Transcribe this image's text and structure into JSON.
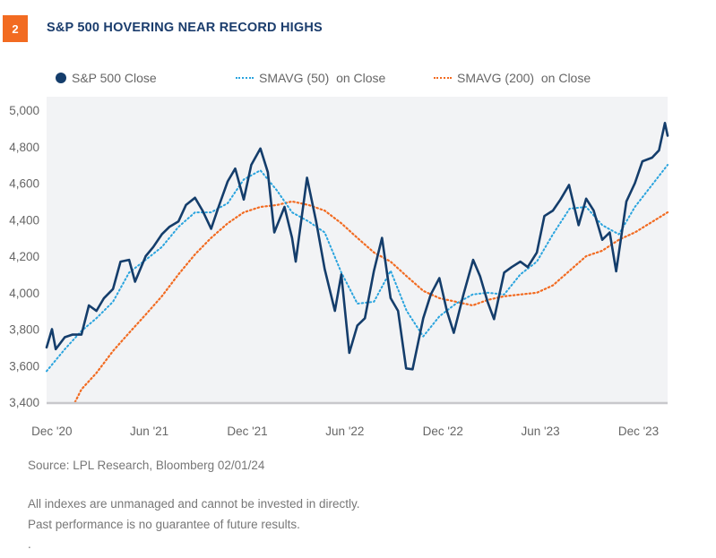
{
  "badge": "2",
  "title": "S&P 500 HOVERING NEAR RECORD HIGHS",
  "footer": {
    "source": "Source: LPL Research, Bloomberg  02/01/24",
    "disclaimer1": "All indexes are unmanaged and cannot be invested in directly.",
    "disclaimer2": "Past performance is no guarantee of future results.",
    "dot": "."
  },
  "colors": {
    "close": "#143D6B",
    "sma50": "#2AA4DE",
    "sma200": "#F26B21",
    "badge": "#F26B21",
    "plot_bg": "#F2F3F5"
  },
  "chart_data": {
    "type": "line",
    "title": "S&P 500 HOVERING NEAR RECORD HIGHS",
    "xlabel": "",
    "ylabel": "",
    "xlim": [
      "2020-11-28",
      "2024-01-31"
    ],
    "ylim": [
      3400,
      5000
    ],
    "grid": false,
    "legend": "top",
    "yticks": [
      {
        "v": 3400,
        "label": "3,400"
      },
      {
        "v": 3600,
        "label": "3,600"
      },
      {
        "v": 3800,
        "label": "3,800"
      },
      {
        "v": 4000,
        "label": "4,000"
      },
      {
        "v": 4200,
        "label": "4,200"
      },
      {
        "v": 4400,
        "label": "4,400"
      },
      {
        "v": 4600,
        "label": "4,600"
      },
      {
        "v": 4800,
        "label": "4,800"
      },
      {
        "v": 5000,
        "label": "5,000"
      }
    ],
    "xticks": [
      {
        "d": "2020-12-01",
        "label": "Dec '20"
      },
      {
        "d": "2021-06-01",
        "label": "Jun '21"
      },
      {
        "d": "2021-12-01",
        "label": "Dec '21"
      },
      {
        "d": "2022-06-01",
        "label": "Jun '22"
      },
      {
        "d": "2022-12-01",
        "label": "Dec '22"
      },
      {
        "d": "2023-06-01",
        "label": "Jun '23"
      },
      {
        "d": "2023-12-01",
        "label": "Dec '23"
      }
    ],
    "series": [
      {
        "name": "S&P 500 Close",
        "style": "solid",
        "points": [
          [
            "2020-11-28",
            3700
          ],
          [
            "2020-12-08",
            3800
          ],
          [
            "2020-12-15",
            3690
          ],
          [
            "2021-01-01",
            3756
          ],
          [
            "2021-01-15",
            3770
          ],
          [
            "2021-02-01",
            3770
          ],
          [
            "2021-02-15",
            3930
          ],
          [
            "2021-03-01",
            3900
          ],
          [
            "2021-03-15",
            3970
          ],
          [
            "2021-04-01",
            4020
          ],
          [
            "2021-04-15",
            4170
          ],
          [
            "2021-05-01",
            4180
          ],
          [
            "2021-05-12",
            4060
          ],
          [
            "2021-06-01",
            4200
          ],
          [
            "2021-06-15",
            4250
          ],
          [
            "2021-07-01",
            4320
          ],
          [
            "2021-07-15",
            4360
          ],
          [
            "2021-08-01",
            4390
          ],
          [
            "2021-08-15",
            4480
          ],
          [
            "2021-09-01",
            4520
          ],
          [
            "2021-09-15",
            4450
          ],
          [
            "2021-10-01",
            4350
          ],
          [
            "2021-10-15",
            4470
          ],
          [
            "2021-11-01",
            4610
          ],
          [
            "2021-11-15",
            4680
          ],
          [
            "2021-12-01",
            4510
          ],
          [
            "2021-12-15",
            4700
          ],
          [
            "2022-01-01",
            4790
          ],
          [
            "2022-01-15",
            4660
          ],
          [
            "2022-01-27",
            4330
          ],
          [
            "2022-02-15",
            4470
          ],
          [
            "2022-03-01",
            4300
          ],
          [
            "2022-03-08",
            4170
          ],
          [
            "2022-03-29",
            4630
          ],
          [
            "2022-04-15",
            4390
          ],
          [
            "2022-05-01",
            4130
          ],
          [
            "2022-05-20",
            3900
          ],
          [
            "2022-06-01",
            4100
          ],
          [
            "2022-06-16",
            3670
          ],
          [
            "2022-07-01",
            3820
          ],
          [
            "2022-07-15",
            3860
          ],
          [
            "2022-08-01",
            4120
          ],
          [
            "2022-08-16",
            4300
          ],
          [
            "2022-09-01",
            3970
          ],
          [
            "2022-09-15",
            3900
          ],
          [
            "2022-09-30",
            3585
          ],
          [
            "2022-10-12",
            3580
          ],
          [
            "2022-11-01",
            3860
          ],
          [
            "2022-11-15",
            3990
          ],
          [
            "2022-12-01",
            4080
          ],
          [
            "2022-12-15",
            3900
          ],
          [
            "2022-12-28",
            3780
          ],
          [
            "2023-01-15",
            3990
          ],
          [
            "2023-02-02",
            4180
          ],
          [
            "2023-02-15",
            4090
          ],
          [
            "2023-03-01",
            3950
          ],
          [
            "2023-03-13",
            3855
          ],
          [
            "2023-04-01",
            4110
          ],
          [
            "2023-04-15",
            4140
          ],
          [
            "2023-05-01",
            4170
          ],
          [
            "2023-05-15",
            4140
          ],
          [
            "2023-06-01",
            4220
          ],
          [
            "2023-06-15",
            4420
          ],
          [
            "2023-07-01",
            4450
          ],
          [
            "2023-07-15",
            4510
          ],
          [
            "2023-07-31",
            4590
          ],
          [
            "2023-08-18",
            4370
          ],
          [
            "2023-09-01",
            4515
          ],
          [
            "2023-09-15",
            4450
          ],
          [
            "2023-10-01",
            4290
          ],
          [
            "2023-10-15",
            4330
          ],
          [
            "2023-10-27",
            4117
          ],
          [
            "2023-11-15",
            4500
          ],
          [
            "2023-12-01",
            4600
          ],
          [
            "2023-12-15",
            4720
          ],
          [
            "2024-01-02",
            4740
          ],
          [
            "2024-01-15",
            4780
          ],
          [
            "2024-01-26",
            4930
          ],
          [
            "2024-01-31",
            4860
          ]
        ]
      },
      {
        "name": "SMAVG (50)  on Close",
        "style": "dotted",
        "points": [
          [
            "2020-11-28",
            3570
          ],
          [
            "2021-01-01",
            3690
          ],
          [
            "2021-02-01",
            3790
          ],
          [
            "2021-03-01",
            3860
          ],
          [
            "2021-04-01",
            3950
          ],
          [
            "2021-05-01",
            4110
          ],
          [
            "2021-06-01",
            4180
          ],
          [
            "2021-07-01",
            4250
          ],
          [
            "2021-08-01",
            4360
          ],
          [
            "2021-09-01",
            4440
          ],
          [
            "2021-10-01",
            4440
          ],
          [
            "2021-11-01",
            4490
          ],
          [
            "2021-12-01",
            4620
          ],
          [
            "2022-01-01",
            4670
          ],
          [
            "2022-02-01",
            4560
          ],
          [
            "2022-03-01",
            4440
          ],
          [
            "2022-04-01",
            4390
          ],
          [
            "2022-05-01",
            4330
          ],
          [
            "2022-06-01",
            4110
          ],
          [
            "2022-07-01",
            3940
          ],
          [
            "2022-08-01",
            3950
          ],
          [
            "2022-09-01",
            4120
          ],
          [
            "2022-10-01",
            3900
          ],
          [
            "2022-11-01",
            3760
          ],
          [
            "2022-12-01",
            3870
          ],
          [
            "2023-01-01",
            3940
          ],
          [
            "2023-02-01",
            3990
          ],
          [
            "2023-03-01",
            4000
          ],
          [
            "2023-04-01",
            3990
          ],
          [
            "2023-05-01",
            4100
          ],
          [
            "2023-06-01",
            4170
          ],
          [
            "2023-07-01",
            4320
          ],
          [
            "2023-08-01",
            4460
          ],
          [
            "2023-09-01",
            4470
          ],
          [
            "2023-10-01",
            4370
          ],
          [
            "2023-11-01",
            4320
          ],
          [
            "2023-12-01",
            4470
          ],
          [
            "2024-01-31",
            4700
          ]
        ]
      },
      {
        "name": "SMAVG (200)  on Close",
        "style": "dotted",
        "points": [
          [
            "2021-01-20",
            3400
          ],
          [
            "2021-02-01",
            3470
          ],
          [
            "2021-03-01",
            3560
          ],
          [
            "2021-04-01",
            3680
          ],
          [
            "2021-05-01",
            3780
          ],
          [
            "2021-06-01",
            3880
          ],
          [
            "2021-07-01",
            3980
          ],
          [
            "2021-08-01",
            4100
          ],
          [
            "2021-09-01",
            4210
          ],
          [
            "2021-10-01",
            4300
          ],
          [
            "2021-11-01",
            4380
          ],
          [
            "2021-12-01",
            4440
          ],
          [
            "2022-01-01",
            4470
          ],
          [
            "2022-02-01",
            4480
          ],
          [
            "2022-03-01",
            4500
          ],
          [
            "2022-04-01",
            4480
          ],
          [
            "2022-05-01",
            4450
          ],
          [
            "2022-06-01",
            4380
          ],
          [
            "2022-07-01",
            4300
          ],
          [
            "2022-08-01",
            4220
          ],
          [
            "2022-09-01",
            4170
          ],
          [
            "2022-10-01",
            4090
          ],
          [
            "2022-11-01",
            4010
          ],
          [
            "2022-12-01",
            3970
          ],
          [
            "2023-01-01",
            3950
          ],
          [
            "2023-02-01",
            3930
          ],
          [
            "2023-03-01",
            3960
          ],
          [
            "2023-04-01",
            3980
          ],
          [
            "2023-05-01",
            3990
          ],
          [
            "2023-06-01",
            4000
          ],
          [
            "2023-07-01",
            4040
          ],
          [
            "2023-08-01",
            4120
          ],
          [
            "2023-09-01",
            4200
          ],
          [
            "2023-10-01",
            4230
          ],
          [
            "2023-11-01",
            4290
          ],
          [
            "2023-12-01",
            4330
          ],
          [
            "2024-01-31",
            4440
          ]
        ]
      }
    ]
  }
}
